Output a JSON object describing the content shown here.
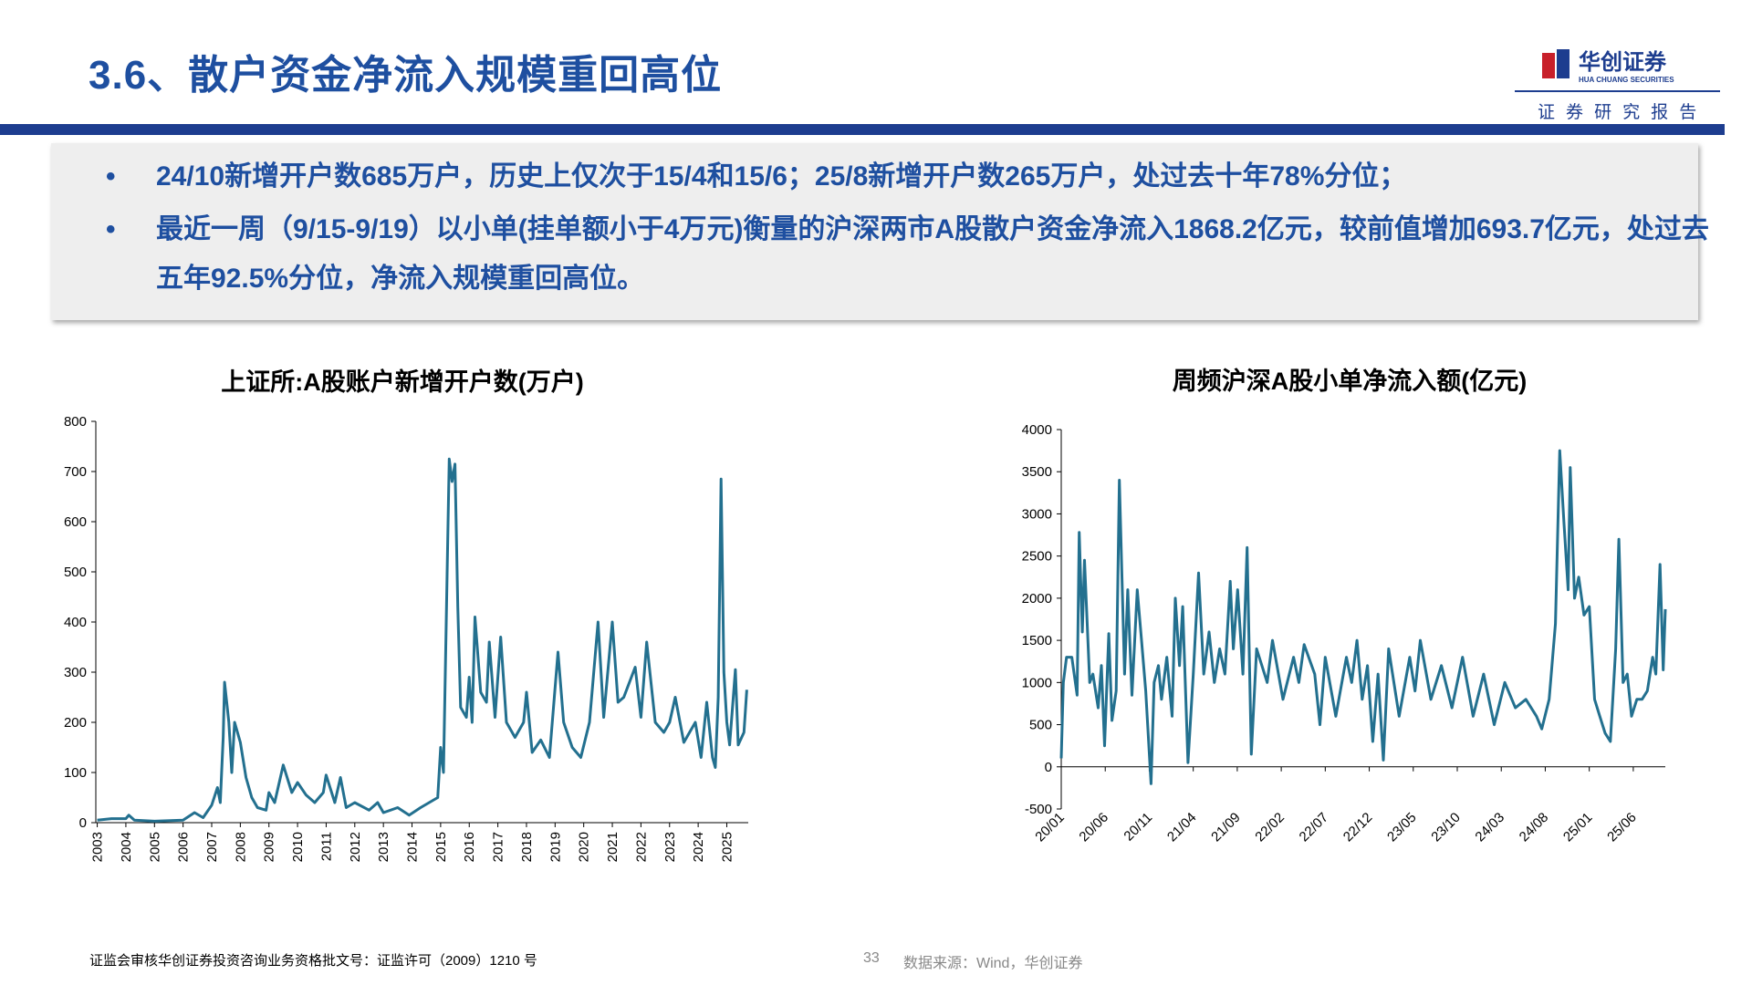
{
  "header": {
    "title": "3.6、散户资金净流入规模重回高位",
    "logo_name": "华创证券",
    "logo_en": "HUA CHUANG SECURITIES",
    "logo_sub": "证 券 研 究 报 告"
  },
  "bullets": [
    "24/10新增开户数685万户，历史上仅次于15/4和15/6；25/8新增开户数265万户，处过去十年78%分位；",
    "最近一周（9/15-9/19）以小单(挂单额小于4万元)衡量的沪深两市A股散户资金净流入1868.2亿元，较前值增加693.7亿元，处过去五年92.5%分位，净流入规模重回高位。"
  ],
  "footer": {
    "license": "证监会审核华创证券投资咨询业务资格批文号：证监许可（2009）1210 号",
    "page": "33",
    "source": "数据来源：Wind，华创证券"
  },
  "chart_data": [
    {
      "type": "line",
      "title": "上证所:A股账户新增开户数(万户)",
      "color": "#23708f",
      "x": [
        2003,
        2003.5,
        2004,
        2004.1,
        2004.3,
        2005,
        2006,
        2006.4,
        2006.7,
        2007.0,
        2007.2,
        2007.3,
        2007.4,
        2007.45,
        2007.6,
        2007.7,
        2007.8,
        2008.0,
        2008.2,
        2008.4,
        2008.6,
        2008.9,
        2009.0,
        2009.2,
        2009.5,
        2009.8,
        2010.0,
        2010.3,
        2010.6,
        2010.9,
        2011.0,
        2011.3,
        2011.5,
        2011.7,
        2012.0,
        2012.5,
        2012.8,
        2013.0,
        2013.5,
        2013.9,
        2014.3,
        2014.6,
        2014.9,
        2015.0,
        2015.1,
        2015.3,
        2015.4,
        2015.5,
        2015.6,
        2015.7,
        2015.9,
        2016.0,
        2016.1,
        2016.2,
        2016.4,
        2016.6,
        2016.7,
        2016.9,
        2017.1,
        2017.3,
        2017.6,
        2017.9,
        2018.0,
        2018.2,
        2018.5,
        2018.8,
        2019.1,
        2019.3,
        2019.6,
        2019.9,
        2020.2,
        2020.5,
        2020.7,
        2021.0,
        2021.2,
        2021.4,
        2021.8,
        2022.0,
        2022.2,
        2022.5,
        2022.8,
        2023.0,
        2023.2,
        2023.5,
        2023.9,
        2024.1,
        2024.3,
        2024.5,
        2024.6,
        2024.7,
        2024.8,
        2024.9,
        2025.0,
        2025.1,
        2025.3,
        2025.4,
        2025.6,
        2025.7
      ],
      "values": [
        5,
        8,
        8,
        15,
        5,
        3,
        5,
        20,
        10,
        35,
        70,
        40,
        170,
        280,
        200,
        100,
        200,
        160,
        90,
        50,
        30,
        25,
        60,
        40,
        115,
        60,
        80,
        55,
        40,
        60,
        95,
        40,
        90,
        30,
        40,
        25,
        40,
        20,
        30,
        15,
        30,
        40,
        50,
        150,
        100,
        725,
        680,
        715,
        430,
        230,
        210,
        290,
        200,
        410,
        260,
        240,
        360,
        210,
        370,
        200,
        170,
        200,
        260,
        140,
        165,
        130,
        340,
        200,
        150,
        130,
        200,
        400,
        210,
        400,
        240,
        250,
        310,
        210,
        360,
        200,
        180,
        200,
        250,
        160,
        200,
        130,
        240,
        130,
        110,
        250,
        685,
        300,
        200,
        155,
        305,
        155,
        180,
        265
      ],
      "xlim": [
        2002.95,
        2025.75
      ],
      "xticks": [
        2003,
        2004,
        2005,
        2006,
        2007,
        2008,
        2009,
        2010,
        2011,
        2012,
        2013,
        2014,
        2015,
        2016,
        2017,
        2018,
        2019,
        2020,
        2021,
        2022,
        2023,
        2024,
        2025
      ],
      "ylim": [
        0,
        800
      ],
      "yticks": [
        0,
        100,
        200,
        300,
        400,
        500,
        600,
        700,
        800
      ]
    },
    {
      "type": "line",
      "title": "周频沪深A股小单净流入额(亿元)",
      "color": "#23708f",
      "x": [
        2020.0,
        2020.02,
        2020.05,
        2020.1,
        2020.15,
        2020.17,
        2020.2,
        2020.22,
        2020.27,
        2020.3,
        2020.35,
        2020.38,
        2020.41,
        2020.45,
        2020.48,
        2020.52,
        2020.55,
        2020.6,
        2020.63,
        2020.67,
        2020.72,
        2020.76,
        2020.8,
        2020.85,
        2020.88,
        2020.92,
        2020.95,
        2021.0,
        2021.05,
        2021.08,
        2021.12,
        2021.15,
        2021.2,
        2021.25,
        2021.3,
        2021.35,
        2021.4,
        2021.45,
        2021.5,
        2021.55,
        2021.6,
        2021.63,
        2021.67,
        2021.72,
        2021.76,
        2021.8,
        2021.85,
        2021.9,
        2021.95,
        2022.0,
        2022.1,
        2022.2,
        2022.25,
        2022.3,
        2022.4,
        2022.45,
        2022.5,
        2022.6,
        2022.7,
        2022.75,
        2022.8,
        2022.85,
        2022.9,
        2022.95,
        2023.0,
        2023.05,
        2023.1,
        2023.2,
        2023.3,
        2023.35,
        2023.4,
        2023.5,
        2023.6,
        2023.7,
        2023.8,
        2023.9,
        2024.0,
        2024.1,
        2024.2,
        2024.3,
        2024.4,
        2024.5,
        2024.55,
        2024.62,
        2024.68,
        2024.72,
        2024.76,
        2024.8,
        2024.82,
        2024.86,
        2024.9,
        2024.95,
        2025.0,
        2025.05,
        2025.1,
        2025.15,
        2025.2,
        2025.25,
        2025.28,
        2025.32,
        2025.36,
        2025.4,
        2025.45,
        2025.5,
        2025.55,
        2025.6,
        2025.63,
        2025.67,
        2025.7,
        2025.72
      ],
      "values": [
        100,
        1000,
        1300,
        1300,
        850,
        2780,
        1600,
        2450,
        1000,
        1100,
        700,
        1200,
        250,
        1580,
        550,
        900,
        3400,
        1100,
        2100,
        850,
        2100,
        1500,
        900,
        -200,
        1000,
        1200,
        800,
        1300,
        600,
        2000,
        1200,
        1900,
        50,
        1100,
        2300,
        1100,
        1600,
        1000,
        1400,
        1100,
        2200,
        1400,
        2100,
        1100,
        2600,
        150,
        1400,
        1200,
        1000,
        1500,
        800,
        1300,
        1000,
        1450,
        1100,
        500,
        1300,
        600,
        1300,
        1000,
        1500,
        800,
        1200,
        300,
        1100,
        80,
        1400,
        600,
        1300,
        900,
        1500,
        800,
        1200,
        700,
        1300,
        600,
        1100,
        500,
        1000,
        700,
        800,
        600,
        450,
        800,
        1700,
        3750,
        2900,
        2100,
        3550,
        2000,
        2250,
        1800,
        1900,
        800,
        600,
        400,
        300,
        1400,
        2700,
        1000,
        1100,
        600,
        800,
        800,
        900,
        1300,
        1100,
        2400,
        1150,
        1870
      ],
      "xlim": [
        2020.0,
        2025.72
      ],
      "xticks": [
        {
          "value": 2020.0,
          "label": "20/01"
        },
        {
          "value": 2020.4167,
          "label": "20/06"
        },
        {
          "value": 2020.8333,
          "label": "20/11"
        },
        {
          "value": 2021.25,
          "label": "21/04"
        },
        {
          "value": 2021.6667,
          "label": "21/09"
        },
        {
          "value": 2022.0833,
          "label": "22/02"
        },
        {
          "value": 2022.5,
          "label": "22/07"
        },
        {
          "value": 2022.9167,
          "label": "22/12"
        },
        {
          "value": 2023.3333,
          "label": "23/05"
        },
        {
          "value": 2023.75,
          "label": "23/10"
        },
        {
          "value": 2024.1667,
          "label": "24/03"
        },
        {
          "value": 2024.5833,
          "label": "24/08"
        },
        {
          "value": 2025.0,
          "label": "25/01"
        },
        {
          "value": 2025.4167,
          "label": "25/06"
        }
      ],
      "ylim": [
        -500,
        4000
      ],
      "yticks": [
        -500,
        0,
        500,
        1000,
        1500,
        2000,
        2500,
        3000,
        3500,
        4000
      ]
    }
  ]
}
